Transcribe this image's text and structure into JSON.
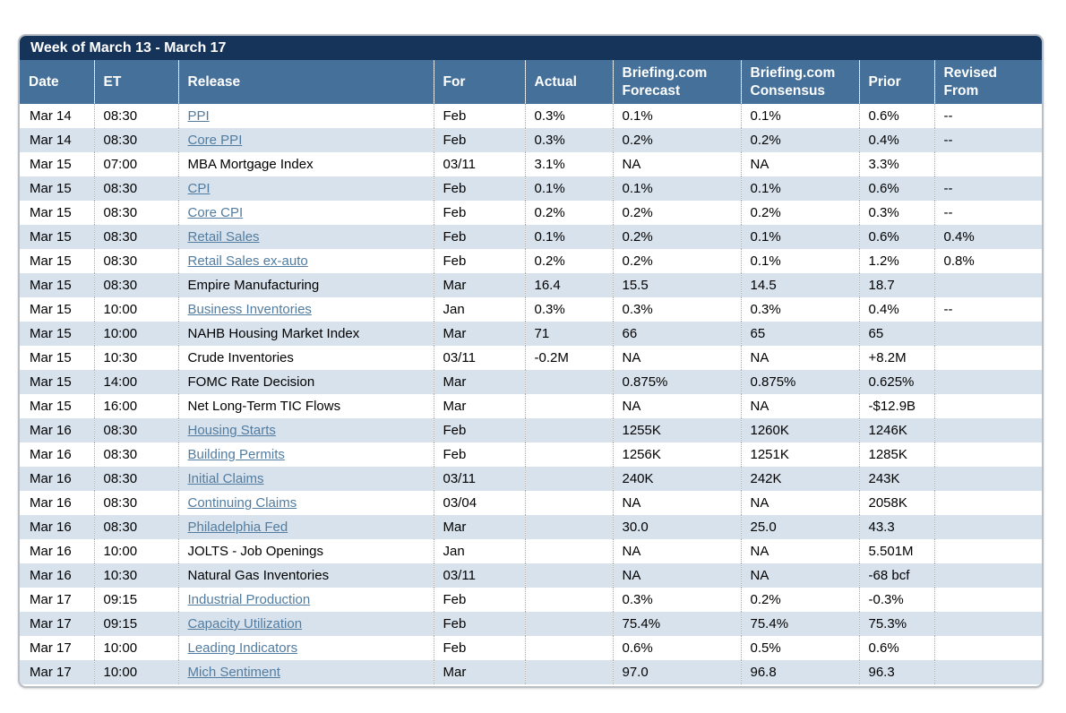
{
  "title": "Week of March 13 - March 17",
  "columns": [
    "Date",
    "ET",
    "Release",
    "For",
    "Actual",
    "Briefing.com\nForecast",
    "Briefing.com\nConsensus",
    "Prior",
    "Revised\nFrom"
  ],
  "theme": {
    "title_bar_bg": "#16335a",
    "header_bg": "#44709a",
    "row_alt_bg": "#d8e2ec",
    "link_color": "#527c9f",
    "border_color": "#b9bfc4"
  },
  "rows": [
    {
      "date": "Mar 14",
      "et": "08:30",
      "release": "PPI",
      "is_link": true,
      "for": "Feb",
      "actual": "0.3%",
      "forecast": "0.1%",
      "consensus": "0.1%",
      "prior": "0.6%",
      "revised": "--"
    },
    {
      "date": "Mar 14",
      "et": "08:30",
      "release": "Core PPI",
      "is_link": true,
      "for": "Feb",
      "actual": "0.3%",
      "forecast": "0.2%",
      "consensus": "0.2%",
      "prior": "0.4%",
      "revised": "--"
    },
    {
      "date": "Mar 15",
      "et": "07:00",
      "release": "MBA Mortgage Index",
      "is_link": false,
      "for": "03/11",
      "actual": "3.1%",
      "forecast": "NA",
      "consensus": "NA",
      "prior": "3.3%",
      "revised": ""
    },
    {
      "date": "Mar 15",
      "et": "08:30",
      "release": "CPI",
      "is_link": true,
      "for": "Feb",
      "actual": "0.1%",
      "forecast": "0.1%",
      "consensus": "0.1%",
      "prior": "0.6%",
      "revised": "--"
    },
    {
      "date": "Mar 15",
      "et": "08:30",
      "release": "Core CPI",
      "is_link": true,
      "for": "Feb",
      "actual": "0.2%",
      "forecast": "0.2%",
      "consensus": "0.2%",
      "prior": "0.3%",
      "revised": "--"
    },
    {
      "date": "Mar 15",
      "et": "08:30",
      "release": "Retail Sales",
      "is_link": true,
      "for": "Feb",
      "actual": "0.1%",
      "forecast": "0.2%",
      "consensus": "0.1%",
      "prior": "0.6%",
      "revised": "0.4%"
    },
    {
      "date": "Mar 15",
      "et": "08:30",
      "release": "Retail Sales ex-auto",
      "is_link": true,
      "for": "Feb",
      "actual": "0.2%",
      "forecast": "0.2%",
      "consensus": "0.1%",
      "prior": "1.2%",
      "revised": "0.8%"
    },
    {
      "date": "Mar 15",
      "et": "08:30",
      "release": "Empire Manufacturing",
      "is_link": false,
      "for": "Mar",
      "actual": "16.4",
      "forecast": "15.5",
      "consensus": "14.5",
      "prior": "18.7",
      "revised": ""
    },
    {
      "date": "Mar 15",
      "et": "10:00",
      "release": "Business Inventories",
      "is_link": true,
      "for": "Jan",
      "actual": "0.3%",
      "forecast": "0.3%",
      "consensus": "0.3%",
      "prior": "0.4%",
      "revised": "--"
    },
    {
      "date": "Mar 15",
      "et": "10:00",
      "release": "NAHB Housing Market Index",
      "is_link": false,
      "for": "Mar",
      "actual": "71",
      "forecast": "66",
      "consensus": "65",
      "prior": "65",
      "revised": ""
    },
    {
      "date": "Mar 15",
      "et": "10:30",
      "release": "Crude Inventories",
      "is_link": false,
      "for": "03/11",
      "actual": "-0.2M",
      "forecast": "NA",
      "consensus": "NA",
      "prior": "+8.2M",
      "revised": ""
    },
    {
      "date": "Mar 15",
      "et": "14:00",
      "release": "FOMC Rate Decision",
      "is_link": false,
      "for": "Mar",
      "actual": "",
      "forecast": "0.875%",
      "consensus": "0.875%",
      "prior": "0.625%",
      "revised": ""
    },
    {
      "date": "Mar 15",
      "et": "16:00",
      "release": "Net Long-Term TIC Flows",
      "is_link": false,
      "for": "Mar",
      "actual": "",
      "forecast": "NA",
      "consensus": "NA",
      "prior": "-$12.9B",
      "revised": ""
    },
    {
      "date": "Mar 16",
      "et": "08:30",
      "release": "Housing Starts",
      "is_link": true,
      "for": "Feb",
      "actual": "",
      "forecast": "1255K",
      "consensus": "1260K",
      "prior": "1246K",
      "revised": ""
    },
    {
      "date": "Mar 16",
      "et": "08:30",
      "release": "Building Permits",
      "is_link": true,
      "for": "Feb",
      "actual": "",
      "forecast": "1256K",
      "consensus": "1251K",
      "prior": "1285K",
      "revised": ""
    },
    {
      "date": "Mar 16",
      "et": "08:30",
      "release": "Initial Claims",
      "is_link": true,
      "for": "03/11",
      "actual": "",
      "forecast": "240K",
      "consensus": "242K",
      "prior": "243K",
      "revised": ""
    },
    {
      "date": "Mar 16",
      "et": "08:30",
      "release": "Continuing Claims",
      "is_link": true,
      "for": "03/04",
      "actual": "",
      "forecast": "NA",
      "consensus": "NA",
      "prior": "2058K",
      "revised": ""
    },
    {
      "date": "Mar 16",
      "et": "08:30",
      "release": "Philadelphia Fed",
      "is_link": true,
      "for": "Mar",
      "actual": "",
      "forecast": "30.0",
      "consensus": "25.0",
      "prior": "43.3",
      "revised": ""
    },
    {
      "date": "Mar 16",
      "et": "10:00",
      "release": "JOLTS - Job Openings",
      "is_link": false,
      "for": "Jan",
      "actual": "",
      "forecast": "NA",
      "consensus": "NA",
      "prior": "5.501M",
      "revised": ""
    },
    {
      "date": "Mar 16",
      "et": "10:30",
      "release": "Natural Gas Inventories",
      "is_link": false,
      "for": "03/11",
      "actual": "",
      "forecast": "NA",
      "consensus": "NA",
      "prior": "-68 bcf",
      "revised": ""
    },
    {
      "date": "Mar 17",
      "et": "09:15",
      "release": "Industrial Production",
      "is_link": true,
      "for": "Feb",
      "actual": "",
      "forecast": "0.3%",
      "consensus": "0.2%",
      "prior": "-0.3%",
      "revised": ""
    },
    {
      "date": "Mar 17",
      "et": "09:15",
      "release": "Capacity Utilization",
      "is_link": true,
      "for": "Feb",
      "actual": "",
      "forecast": "75.4%",
      "consensus": "75.4%",
      "prior": "75.3%",
      "revised": ""
    },
    {
      "date": "Mar 17",
      "et": "10:00",
      "release": "Leading Indicators",
      "is_link": true,
      "for": "Feb",
      "actual": "",
      "forecast": "0.6%",
      "consensus": "0.5%",
      "prior": "0.6%",
      "revised": ""
    },
    {
      "date": "Mar 17",
      "et": "10:00",
      "release": "Mich Sentiment",
      "is_link": true,
      "for": "Mar",
      "actual": "",
      "forecast": "97.0",
      "consensus": "96.8",
      "prior": "96.3",
      "revised": ""
    }
  ]
}
